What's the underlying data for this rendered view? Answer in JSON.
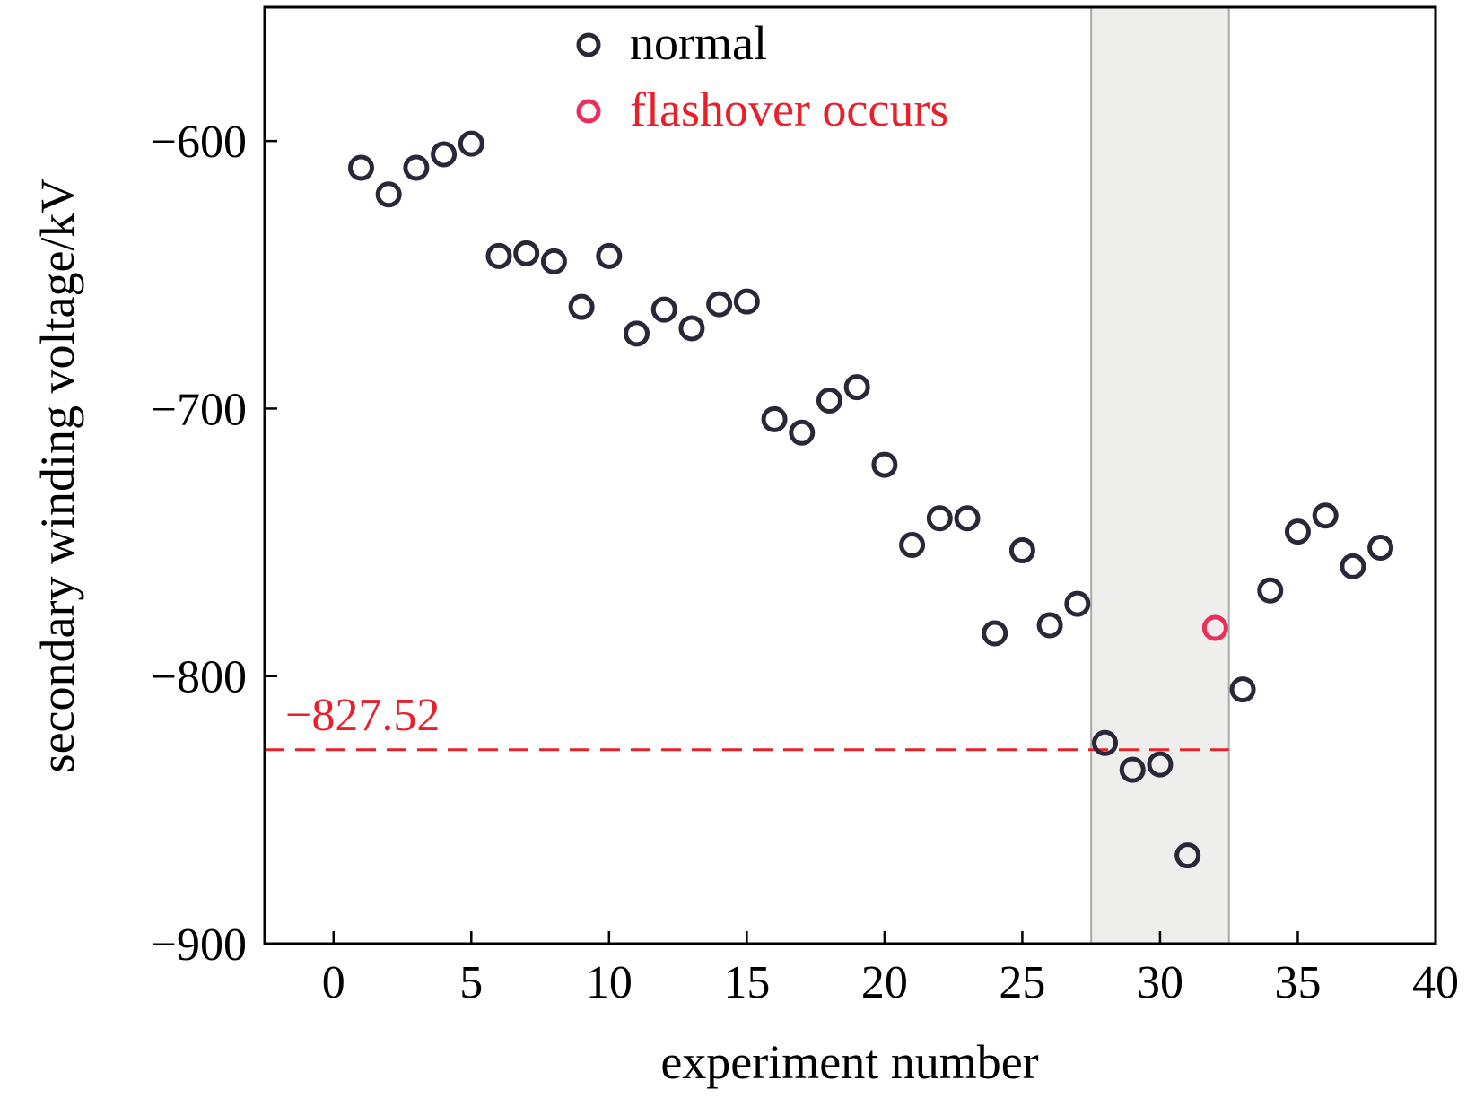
{
  "chart_data": {
    "type": "scatter",
    "title": "",
    "xlabel": "experiment number",
    "ylabel": "secondary winding voltage/kV",
    "xlim": [
      -2.5,
      40
    ],
    "ylim": [
      -900,
      -550
    ],
    "x_ticks": [
      0,
      5,
      10,
      15,
      20,
      25,
      30,
      35,
      40
    ],
    "x_tick_labels": [
      "0",
      "5",
      "10",
      "15",
      "20",
      "25",
      "30",
      "35",
      "40"
    ],
    "y_ticks": [
      -600,
      -700,
      -800,
      -900
    ],
    "y_tick_labels": [
      "−600",
      "−700",
      "−800",
      "−900"
    ],
    "grid": false,
    "legend_position": "top-center",
    "series": [
      {
        "name": "normal",
        "color": "#2a2838",
        "points": [
          [
            1,
            -610
          ],
          [
            2,
            -620
          ],
          [
            3,
            -610
          ],
          [
            4,
            -605
          ],
          [
            5,
            -601
          ],
          [
            6,
            -643
          ],
          [
            7,
            -642
          ],
          [
            8,
            -645
          ],
          [
            9,
            -662
          ],
          [
            10,
            -643
          ],
          [
            11,
            -672
          ],
          [
            12,
            -663
          ],
          [
            13,
            -670
          ],
          [
            14,
            -661
          ],
          [
            15,
            -660
          ],
          [
            16,
            -704
          ],
          [
            17,
            -709
          ],
          [
            18,
            -697
          ],
          [
            19,
            -692
          ],
          [
            20,
            -721
          ],
          [
            21,
            -751
          ],
          [
            22,
            -741
          ],
          [
            23,
            -741
          ],
          [
            24,
            -784
          ],
          [
            25,
            -753
          ],
          [
            26,
            -781
          ],
          [
            27,
            -773
          ],
          [
            28,
            -825
          ],
          [
            29,
            -835
          ],
          [
            30,
            -833
          ],
          [
            31,
            -867
          ],
          [
            33,
            -805
          ],
          [
            34,
            -768
          ],
          [
            35,
            -746
          ],
          [
            36,
            -740
          ],
          [
            37,
            -759
          ],
          [
            38,
            -752
          ]
        ]
      },
      {
        "name": "flashover occurs",
        "color": "#e8305a",
        "points": [
          [
            32,
            -782
          ]
        ]
      }
    ],
    "shaded_region": {
      "x_from": 27.5,
      "x_to": 32.5,
      "color": "#eeeeec"
    },
    "reference_line": {
      "y": -827.52,
      "x_from": -2.5,
      "x_to": 32.5,
      "label": "−827.52",
      "color": "#e8202a"
    }
  }
}
